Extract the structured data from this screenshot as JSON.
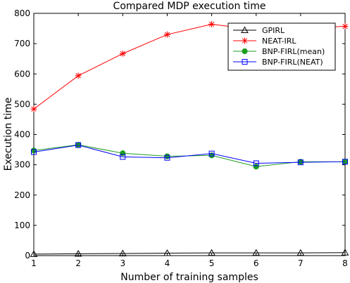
{
  "chart_data": {
    "type": "line",
    "title": "Compared MDP execution time",
    "xlabel": "Number of training samples",
    "ylabel": "Execution time",
    "x": [
      1,
      2,
      3,
      4,
      5,
      6,
      7,
      8
    ],
    "xlim": [
      1,
      8
    ],
    "ylim": [
      0,
      800
    ],
    "xticks": [
      1,
      2,
      3,
      4,
      5,
      6,
      7,
      8
    ],
    "yticks": [
      0,
      100,
      200,
      300,
      400,
      500,
      600,
      700,
      800
    ],
    "grid": false,
    "legend_position": "top-right",
    "series": [
      {
        "name": "GPIRL",
        "color": "#000000",
        "marker": "triangle",
        "values": [
          5,
          6,
          7,
          8,
          9,
          9,
          9,
          10
        ]
      },
      {
        "name": "NEAT-IRL",
        "color": "#ff0000",
        "marker": "asterisk",
        "values": [
          484,
          594,
          667,
          730,
          764,
          746,
          751,
          757
        ]
      },
      {
        "name": "BNP-FIRL(mean)",
        "color": "#1e9e1e",
        "marker": "filled-circle",
        "values": [
          347,
          366,
          338,
          328,
          331,
          294,
          310,
          310
        ]
      },
      {
        "name": "BNP-FIRL(NEAT)",
        "color": "#0000ff",
        "marker": "square",
        "values": [
          342,
          365,
          326,
          323,
          337,
          305,
          308,
          310
        ]
      }
    ]
  }
}
